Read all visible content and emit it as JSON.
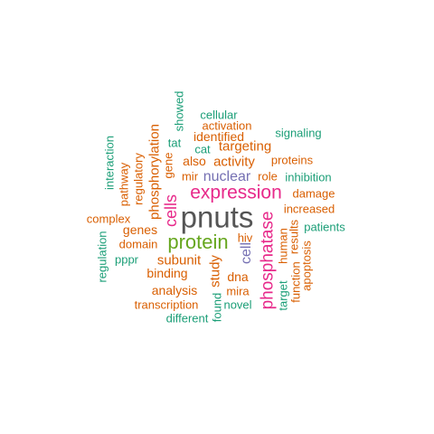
{
  "colors": {
    "big": "#555555",
    "orange": "#d95f02",
    "teal": "#1b9e77",
    "magenta": "#e7298a",
    "green": "#66a61e",
    "purple": "#7570b3"
  },
  "words": [
    {
      "text": "pnuts",
      "color": "big"
    },
    {
      "text": "expression",
      "color": "magenta"
    },
    {
      "text": "protein",
      "color": "green"
    },
    {
      "text": "phosphatase",
      "color": "magenta"
    },
    {
      "text": "cells",
      "color": "magenta"
    },
    {
      "text": "nuclear",
      "color": "purple"
    },
    {
      "text": "cell",
      "color": "purple"
    },
    {
      "text": "phosphorylation",
      "color": "orange"
    },
    {
      "text": "activity",
      "color": "orange"
    },
    {
      "text": "targeting",
      "color": "orange"
    },
    {
      "text": "identified",
      "color": "orange"
    },
    {
      "text": "activation",
      "color": "orange"
    },
    {
      "text": "cellular",
      "color": "teal"
    },
    {
      "text": "signaling",
      "color": "teal"
    },
    {
      "text": "showed",
      "color": "teal"
    },
    {
      "text": "tat",
      "color": "teal"
    },
    {
      "text": "cat",
      "color": "teal"
    },
    {
      "text": "also",
      "color": "orange"
    },
    {
      "text": "proteins",
      "color": "orange"
    },
    {
      "text": "gene",
      "color": "orange"
    },
    {
      "text": "regulatory",
      "color": "orange"
    },
    {
      "text": "pathway",
      "color": "orange"
    },
    {
      "text": "interaction",
      "color": "teal"
    },
    {
      "text": "mir",
      "color": "orange"
    },
    {
      "text": "role",
      "color": "orange"
    },
    {
      "text": "inhibition",
      "color": "teal"
    },
    {
      "text": "damage",
      "color": "orange"
    },
    {
      "text": "increased",
      "color": "orange"
    },
    {
      "text": "patients",
      "color": "teal"
    },
    {
      "text": "results",
      "color": "orange"
    },
    {
      "text": "human",
      "color": "orange"
    },
    {
      "text": "apoptosis",
      "color": "orange"
    },
    {
      "text": "function",
      "color": "orange"
    },
    {
      "text": "target",
      "color": "teal"
    },
    {
      "text": "complex",
      "color": "orange"
    },
    {
      "text": "genes",
      "color": "orange"
    },
    {
      "text": "domain",
      "color": "orange"
    },
    {
      "text": "regulation",
      "color": "teal"
    },
    {
      "text": "pppr",
      "color": "teal"
    },
    {
      "text": "subunit",
      "color": "orange"
    },
    {
      "text": "hiv",
      "color": "orange"
    },
    {
      "text": "binding",
      "color": "orange"
    },
    {
      "text": "study",
      "color": "orange"
    },
    {
      "text": "dna",
      "color": "orange"
    },
    {
      "text": "analysis",
      "color": "orange"
    },
    {
      "text": "mira",
      "color": "orange"
    },
    {
      "text": "transcription",
      "color": "orange"
    },
    {
      "text": "novel",
      "color": "teal"
    },
    {
      "text": "found",
      "color": "teal"
    },
    {
      "text": "different",
      "color": "teal"
    }
  ]
}
